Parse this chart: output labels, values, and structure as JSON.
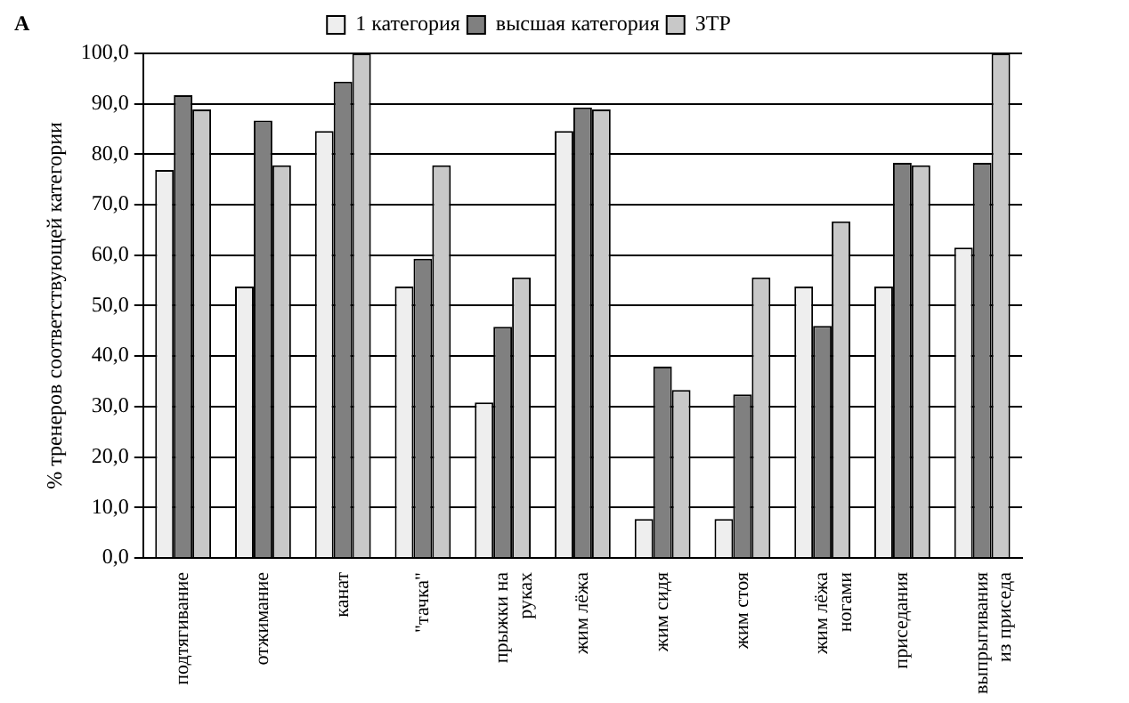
{
  "chart_data": {
    "type": "bar",
    "categories": [
      "подтягивание",
      "отжимание",
      "канат",
      "\"тачка\"",
      "прыжки на руках",
      "жим лёжа",
      "жим сидя",
      "жим стоя",
      "жим лёжа ногами",
      "приседания",
      "выпрыгивания из приседа"
    ],
    "series": [
      {
        "name": "1 категория",
        "color": "#eeeeee",
        "values": [
          76.9,
          53.8,
          84.6,
          53.8,
          30.8,
          84.6,
          7.7,
          7.7,
          53.8,
          53.8,
          61.5
        ]
      },
      {
        "name": "высшая категория",
        "color": "#808080",
        "values": [
          91.7,
          86.7,
          94.4,
          59.3,
          45.8,
          89.3,
          37.9,
          32.4,
          46.0,
          78.3,
          78.3
        ]
      },
      {
        "name": "ЗТР",
        "color": "#c8c8c8",
        "values": [
          88.9,
          77.8,
          100.0,
          77.8,
          55.6,
          88.9,
          33.3,
          55.6,
          66.7,
          77.8,
          100.0
        ]
      }
    ],
    "ylabel": "% тренеров соответствующей категории",
    "ylim": [
      0,
      100
    ],
    "yticks": [
      {
        "value": 0,
        "label": "0,0"
      },
      {
        "value": 10,
        "label": "10,0"
      },
      {
        "value": 20,
        "label": "20,0"
      },
      {
        "value": 30,
        "label": "30,0"
      },
      {
        "value": 40,
        "label": "40,0"
      },
      {
        "value": 50,
        "label": "50,0"
      },
      {
        "value": 60,
        "label": "60,0"
      },
      {
        "value": 70,
        "label": "70,0"
      },
      {
        "value": 80,
        "label": "80,0"
      },
      {
        "value": 90,
        "label": "90,0"
      },
      {
        "value": 100,
        "label": "100,0"
      }
    ],
    "grid": "y",
    "legend": "top",
    "annotations": [
      "А"
    ]
  }
}
